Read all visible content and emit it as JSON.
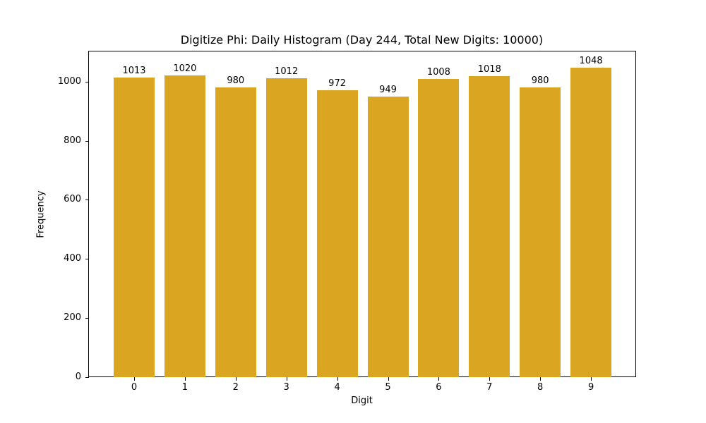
{
  "chart_data": {
    "type": "bar",
    "title": "Digitize Phi: Daily Histogram (Day 244, Total New Digits: 10000)",
    "xlabel": "Digit",
    "ylabel": "Frequency",
    "categories": [
      "0",
      "1",
      "2",
      "3",
      "4",
      "5",
      "6",
      "7",
      "8",
      "9"
    ],
    "values": [
      1013,
      1020,
      980,
      1012,
      972,
      949,
      1008,
      1018,
      980,
      1048
    ],
    "bar_labels": [
      "1013",
      "1020",
      "980",
      "1012",
      "972",
      "949",
      "1008",
      "1018",
      "980",
      "1048"
    ],
    "yticks": [
      0,
      200,
      400,
      600,
      800,
      1000
    ],
    "ytick_labels": [
      "0",
      "200",
      "400",
      "600",
      "800",
      "1000"
    ],
    "ylim": [
      0,
      1100
    ],
    "grid": false,
    "legend": null,
    "bar_color": "#DAA520"
  }
}
